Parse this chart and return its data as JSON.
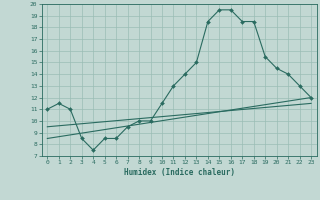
{
  "xlabel": "Humidex (Indice chaleur)",
  "background_color": "#c2d8d3",
  "line_color": "#2a6b60",
  "grid_color": "#9abdb5",
  "xlim": [
    -0.5,
    23.5
  ],
  "ylim": [
    7,
    20
  ],
  "xticks": [
    0,
    1,
    2,
    3,
    4,
    5,
    6,
    7,
    8,
    9,
    10,
    11,
    12,
    13,
    14,
    15,
    16,
    17,
    18,
    19,
    20,
    21,
    22,
    23
  ],
  "yticks": [
    7,
    8,
    9,
    10,
    11,
    12,
    13,
    14,
    15,
    16,
    17,
    18,
    19,
    20
  ],
  "line1_x": [
    0,
    1,
    2,
    3,
    4,
    5,
    6,
    7,
    8,
    9,
    10,
    11,
    12,
    13,
    14,
    15,
    16,
    17,
    18,
    19,
    20,
    21,
    22,
    23
  ],
  "line1_y": [
    11.0,
    11.5,
    11.0,
    8.5,
    7.5,
    8.5,
    8.5,
    9.5,
    10.0,
    10.0,
    11.5,
    13.0,
    14.0,
    15.0,
    18.5,
    19.5,
    19.5,
    18.5,
    18.5,
    15.5,
    14.5,
    14.0,
    13.0,
    12.0
  ],
  "line2_x": [
    0,
    23
  ],
  "line2_y": [
    8.5,
    12.0
  ],
  "line3_x": [
    0,
    23
  ],
  "line3_y": [
    9.5,
    11.5
  ]
}
